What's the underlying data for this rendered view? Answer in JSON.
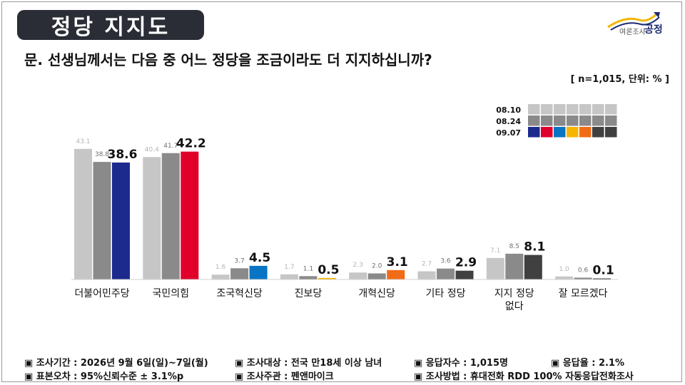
{
  "header": {
    "title": "정당 지지도",
    "logo_small": "여론조사",
    "logo_main": "공정",
    "question": "문. 선생님께서는 다음 중 어느 정당을 조금이라도 더 지지하십니까?",
    "sample_note": "[ n=1,015, 단위: % ]"
  },
  "legend": {
    "rows": [
      {
        "label": "08.10",
        "colors": [
          "#c6c6c6",
          "#c6c6c6",
          "#c6c6c6",
          "#c6c6c6",
          "#c6c6c6",
          "#c6c6c6",
          "#c6c6c6"
        ]
      },
      {
        "label": "08.24",
        "colors": [
          "#8a8a8a",
          "#8a8a8a",
          "#8a8a8a",
          "#8a8a8a",
          "#8a8a8a",
          "#8a8a8a",
          "#8a8a8a"
        ]
      },
      {
        "label": "09.07",
        "colors": [
          "#1b2a8c",
          "#e0002a",
          "#0a74c4",
          "#f7b500",
          "#f26b16",
          "#404040",
          "#404040"
        ]
      }
    ]
  },
  "chart_data": {
    "type": "bar",
    "categories": [
      "더불어민주당",
      "국민의힘",
      "조국혁신당",
      "진보당",
      "개혁신당",
      "기타 정당",
      "지지 정당\n없다",
      "잘 모르겠다"
    ],
    "series": [
      {
        "name": "08.10",
        "values": [
          43.1,
          40.4,
          1.6,
          1.7,
          2.3,
          2.7,
          7.1,
          1.0
        ],
        "labels": [
          "43.1",
          "40.4",
          "1.6",
          "1.7",
          "2.3",
          "2.7",
          "7.1",
          "1.0"
        ],
        "color": "#c6c6c6"
      },
      {
        "name": "08.24",
        "values": [
          38.8,
          41.7,
          3.7,
          1.1,
          2.0,
          3.6,
          8.5,
          0.6
        ],
        "labels": [
          "38.8",
          "41.7",
          "3.7",
          "1.1",
          "2.0",
          "3.6",
          "8.5",
          "0.6"
        ],
        "color": "#8a8a8a"
      },
      {
        "name": "09.07",
        "values": [
          38.6,
          42.2,
          4.5,
          0.5,
          3.1,
          2.9,
          8.1,
          0.1
        ],
        "labels": [
          "38.6",
          "42.2",
          "4.5",
          "0.5",
          "3.1",
          "2.9",
          "8.1",
          "0.1"
        ],
        "colors": [
          "#1b2a8c",
          "#e0002a",
          "#0a74c4",
          "#f7b500",
          "#f26b16",
          "#404040",
          "#404040",
          "#404040"
        ]
      }
    ],
    "ylim": [
      0,
      50
    ],
    "grid": false,
    "legend": "top-right"
  },
  "footer": {
    "items": [
      "▣ 조사기간 : 2026년 9월 6일(일)~7일(월)",
      "▣ 조사대상 : 전국 만18세 이상 남녀",
      "▣ 응답자수 : 1,015명",
      "▣ 응답율 : 2.1%",
      "▣ 표본오차 : 95%신뢰수준 ± 3.1%p",
      "▣ 조사주관 : 펜앤마이크",
      "▣ 조사방법 : 휴대전화 RDD 100% 자동응답전화조사"
    ]
  }
}
